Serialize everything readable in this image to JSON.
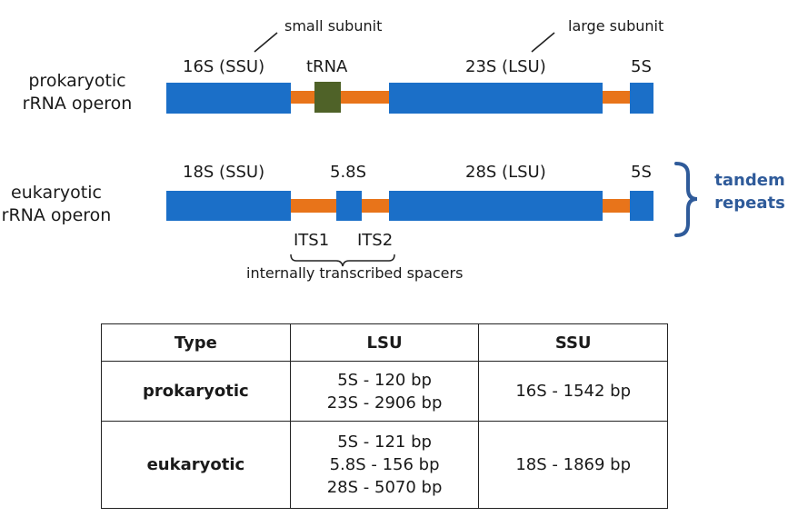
{
  "colors": {
    "gene": "#1b6fc8",
    "spacer": "#e8741a",
    "trna": "#4f6228",
    "tandem": "#2f5b9a"
  },
  "prokaryotic": {
    "label_line1": "prokaryotic",
    "label_line2": "rRNA operon",
    "ssu_label": "16S (SSU)",
    "trna_label": "tRNA",
    "lsu_label": "23S (LSU)",
    "s5_label": "5S",
    "small_subunit_note": "small subunit",
    "large_subunit_note": "large subunit"
  },
  "eukaryotic": {
    "label_line1": "eukaryotic",
    "label_line2": "rRNA operon",
    "ssu_label": "18S (SSU)",
    "s58_label": "5.8S",
    "lsu_label": "28S (LSU)",
    "s5_label": "5S",
    "its1_label": "ITS1",
    "its2_label": "ITS2",
    "spacers_note": "internally transcribed spacers"
  },
  "tandem": {
    "line1": "tandem",
    "line2": "repeats"
  },
  "table": {
    "headers": [
      "Type",
      "LSU",
      "SSU"
    ],
    "rows": [
      {
        "type": "prokaryotic",
        "lsu": [
          "5S - 120 bp",
          "23S - 2906 bp"
        ],
        "ssu": "16S - 1542 bp"
      },
      {
        "type": "eukaryotic",
        "lsu": [
          "5S - 121 bp",
          "5.8S - 156 bp",
          "28S - 5070 bp"
        ],
        "ssu": "18S - 1869 bp"
      }
    ]
  }
}
